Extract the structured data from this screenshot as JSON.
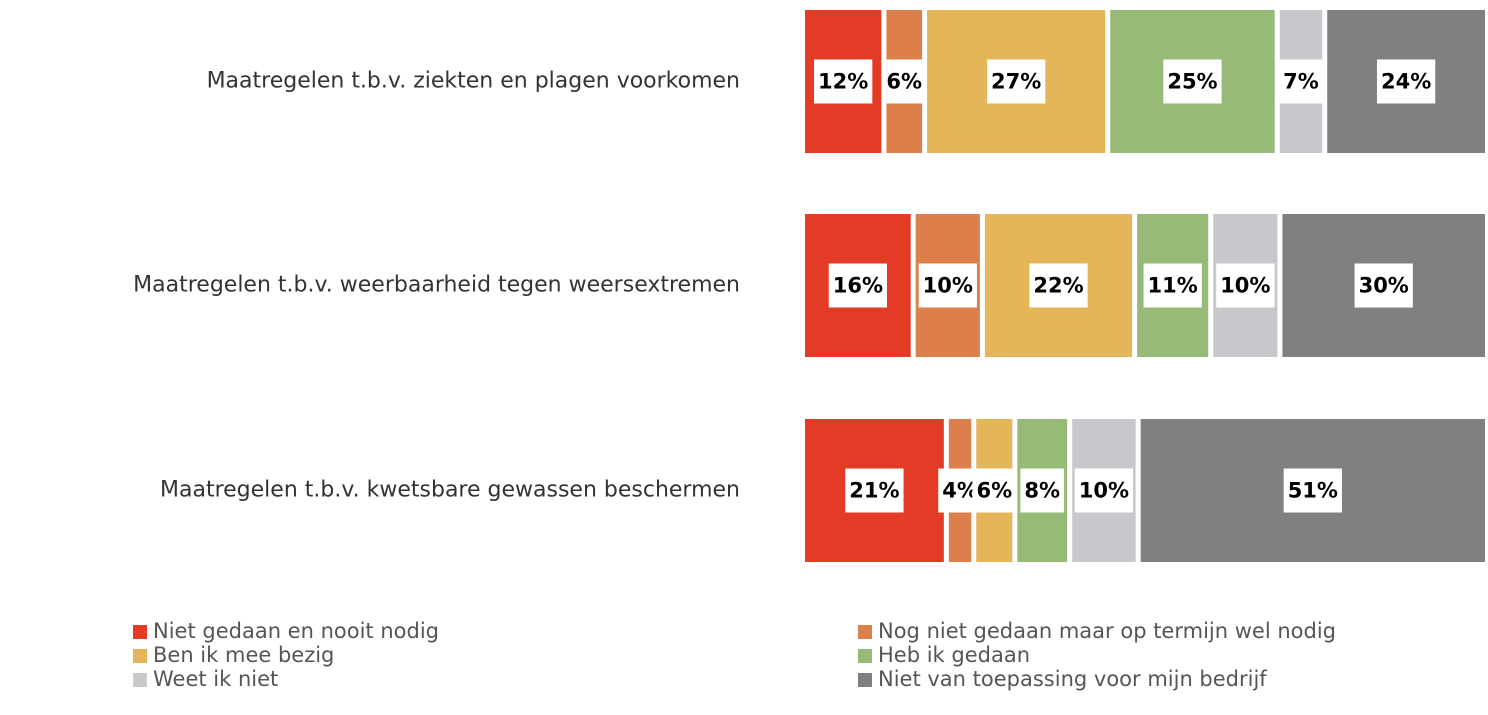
{
  "chart_data": {
    "type": "stacked-bar-horizontal",
    "categories": [
      "Maatregelen t.b.v. ziekten en plagen voorkomen",
      "Maatregelen t.b.v. weerbaarheid tegen weersextremen",
      "Maatregelen t.b.v. kwetsbare gewassen beschermen"
    ],
    "series": [
      {
        "name": "Niet gedaan en nooit nodig",
        "color": "#e33b26",
        "values": [
          12,
          16,
          21
        ],
        "value_labels": [
          "12%",
          "16%",
          "21%"
        ]
      },
      {
        "name": "Nog niet gedaan maar op termijn wel nodig",
        "color": "#dc7f4b",
        "values": [
          6,
          10,
          4
        ],
        "value_labels": [
          "6%",
          "10%",
          "4%"
        ]
      },
      {
        "name": "Ben ik mee bezig",
        "color": "#e5b55a",
        "values": [
          27,
          22,
          6
        ],
        "value_labels": [
          "27%",
          "22%",
          "6%"
        ]
      },
      {
        "name": "Heb ik gedaan",
        "color": "#97bb77",
        "values": [
          25,
          11,
          8
        ],
        "value_labels": [
          "25%",
          "11%",
          "8%"
        ]
      },
      {
        "name": "Weet ik niet",
        "color": "#c8c8cc",
        "values": [
          7,
          10,
          10
        ],
        "value_labels": [
          "7%",
          "10%",
          "10%"
        ]
      },
      {
        "name": "Niet van toepassing voor mijn bedrijf",
        "color": "#808080",
        "values": [
          24,
          30,
          51
        ],
        "value_labels": [
          "24%",
          "30%",
          "51%"
        ]
      }
    ],
    "legend": "bottom"
  }
}
